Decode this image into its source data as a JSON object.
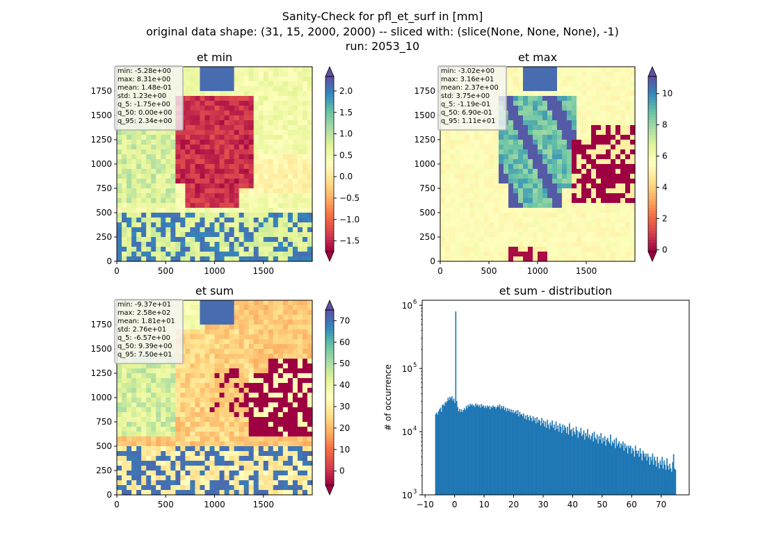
{
  "suptitle": {
    "line1": "Sanity-Check for pfl_et_surf in [mm]",
    "line2": "original data shape: (31, 15, 2000, 2000) -- sliced with: (slice(None, None, None), -1)",
    "line3": "run: 2053_10"
  },
  "colors": {
    "hist_bar": "#1f77b4",
    "colormap": [
      "#9e0142",
      "#d53e4f",
      "#f46d43",
      "#fdae61",
      "#fee08b",
      "#ffffbf",
      "#e6f598",
      "#abdda4",
      "#66c2a5",
      "#3288bd",
      "#5e4fa2"
    ]
  },
  "chart_data": [
    {
      "type": "heatmap",
      "title": "et min",
      "colormap": "Spectral",
      "xticks": [
        "0",
        "500",
        "1000",
        "1500"
      ],
      "yticks": [
        "0",
        "250",
        "500",
        "750",
        "1000",
        "1250",
        "1500",
        "1750"
      ],
      "xlim": [
        0,
        2000
      ],
      "ylim": [
        0,
        2000
      ],
      "colorbar": {
        "ticks": [
          -1.5,
          -1.0,
          -0.5,
          0.0,
          0.5,
          1.0,
          1.5,
          2.0
        ],
        "tick_labels": [
          "−1.5",
          "−1.0",
          "−0.5",
          "0.0",
          "0.5",
          "1.0",
          "1.5",
          "2.0"
        ],
        "range": [
          -1.75,
          2.34
        ],
        "extend": "both"
      },
      "stats": [
        "min: -5.28e+00",
        "max: 8.31e+00",
        "mean: 1.48e-01",
        "std: 1.23e+00",
        "q_5: -1.75e+00",
        "q_50: 0.00e+00",
        "q_95: 2.34e+00"
      ]
    },
    {
      "type": "heatmap",
      "title": "et max",
      "colormap": "Spectral",
      "xticks": [
        "0",
        "500",
        "1000",
        "1500"
      ],
      "yticks": [
        "0",
        "250",
        "500",
        "750",
        "1000",
        "1250",
        "1500",
        "1750"
      ],
      "xlim": [
        0,
        2000
      ],
      "ylim": [
        0,
        2000
      ],
      "colorbar": {
        "ticks": [
          0,
          2,
          4,
          6,
          8,
          10
        ],
        "tick_labels": [
          "0",
          "2",
          "4",
          "6",
          "8",
          "10"
        ],
        "range": [
          -0.119,
          11.1
        ],
        "extend": "both"
      },
      "stats": [
        "min: -3.02e+00",
        "max: 3.16e+01",
        "mean: 2.37e+00",
        "std: 3.75e+00",
        "q_5: -1.19e-01",
        "q_50: 6.90e-01",
        "q_95: 1.11e+01"
      ]
    },
    {
      "type": "heatmap",
      "title": "et sum",
      "colormap": "Spectral",
      "xticks": [
        "0",
        "500",
        "1000",
        "1500"
      ],
      "yticks": [
        "0",
        "250",
        "500",
        "750",
        "1000",
        "1250",
        "1500",
        "1750"
      ],
      "xlim": [
        0,
        2000
      ],
      "ylim": [
        0,
        2000
      ],
      "colorbar": {
        "ticks": [
          0,
          10,
          20,
          30,
          40,
          50,
          60,
          70
        ],
        "tick_labels": [
          "0",
          "10",
          "20",
          "30",
          "40",
          "50",
          "60",
          "70"
        ],
        "range": [
          -6.57,
          75.0
        ],
        "extend": "both"
      },
      "stats": [
        "min: -9.37e+01",
        "max: 2.58e+02",
        "mean: 1.81e+01",
        "std: 2.76e+01",
        "q_5: -6.57e+00",
        "q_50: 9.39e+00",
        "q_95: 7.50e+01"
      ]
    },
    {
      "type": "bar",
      "title": "et sum - distribution",
      "ylabel": "# of occurrence",
      "xlabel": "",
      "yscale": "log",
      "xlim": [
        -11.0,
        79.5
      ],
      "ylim": [
        1000,
        1200000
      ],
      "xticks": [
        "−10",
        "0",
        "10",
        "20",
        "30",
        "40",
        "50",
        "60",
        "70"
      ],
      "xtick_values": [
        -10,
        0,
        10,
        20,
        30,
        40,
        50,
        60,
        70
      ],
      "yticks": [
        "10",
        "10",
        "10",
        "10"
      ],
      "ytick_exponents": [
        "3",
        "4",
        "5",
        "6"
      ],
      "ytick_values": [
        1000,
        10000,
        100000,
        1000000
      ],
      "bin_range": [
        -6.6,
        75.0
      ],
      "counts": [
        19000,
        20000,
        18500,
        21000,
        22500,
        24000,
        20500,
        26500,
        27000,
        25500,
        29500,
        28500,
        30500,
        34500,
        31500,
        35500,
        33500,
        36500,
        31000,
        33500,
        28500,
        800000,
        30500,
        24500,
        21000,
        23000,
        20500,
        22500,
        20500,
        22000,
        23500,
        22000,
        25500,
        23500,
        26500,
        25000,
        27500,
        26000,
        27500,
        25500,
        26500,
        24500,
        28000,
        26000,
        27000,
        25000,
        26500,
        24000,
        27500,
        25000,
        26000,
        24000,
        25500,
        23500,
        26000,
        24500,
        25500,
        22500,
        25000,
        24000,
        26000,
        24500,
        25000,
        23000,
        24500,
        26000,
        24500,
        27000,
        23000,
        25500,
        23500,
        25500,
        22000,
        24000,
        21000,
        23500,
        21500,
        23000,
        20500,
        22500,
        20000,
        22000,
        19500,
        20500,
        21500,
        19000,
        22000,
        17500,
        20500,
        18500,
        19000,
        17500,
        19500,
        16000,
        18000,
        15500,
        18500,
        17000,
        15000,
        18000,
        16500,
        14500,
        17500,
        15000,
        16500,
        13500,
        17000,
        14000,
        15500,
        15000,
        12500,
        16500,
        13500,
        15000,
        12000,
        14500,
        11500,
        15500,
        13000,
        11000,
        14000,
        12500,
        15000,
        11500,
        13000,
        10500,
        14500,
        11000,
        12500,
        10000,
        13500,
        12000,
        9500,
        13000,
        10500,
        12500,
        11500,
        9500,
        12000,
        9000,
        13500,
        10500,
        11000,
        8500,
        11500,
        10000,
        9000,
        12000,
        10500,
        8000,
        10000,
        9500,
        11500,
        8500,
        9000,
        10500,
        7500,
        9500,
        8500,
        11000,
        8000,
        9000,
        7500,
        8500,
        9500,
        7000,
        10000,
        8000,
        7500,
        9000,
        6500,
        8500,
        7500,
        9500,
        6500,
        8000,
        7000,
        8500,
        6000,
        7500,
        8000,
        7000,
        6500,
        9000,
        6000,
        7000,
        6500,
        7500,
        5500,
        8000,
        6000,
        6500,
        7000,
        5500,
        6500,
        6000,
        7000,
        5000,
        6500,
        5500,
        6000,
        4500,
        6000,
        5500,
        6000,
        4500,
        5500,
        5000,
        4000,
        6000,
        5000,
        4500,
        5000,
        4000,
        5500,
        4500,
        3500,
        5000,
        4500,
        4000,
        4500,
        3500,
        4500,
        4000,
        3000,
        4000,
        3500,
        4500,
        3000,
        4000,
        3500,
        2800,
        4000,
        3200,
        2600,
        3500,
        3000,
        4000,
        2600,
        3500,
        3000,
        2500,
        3800,
        2900,
        2500,
        3100,
        2600,
        2300,
        3300,
        4400,
        2600,
        2500
      ]
    }
  ]
}
